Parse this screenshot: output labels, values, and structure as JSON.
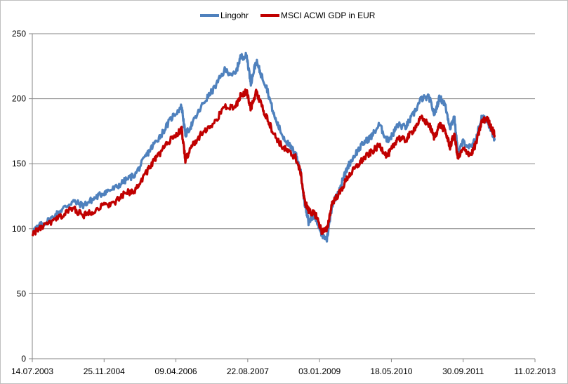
{
  "chart_data": {
    "type": "line",
    "title": "",
    "xlabel": "",
    "ylabel": "",
    "ylim": [
      0,
      250
    ],
    "y_ticks": [
      "0",
      "50",
      "100",
      "150",
      "200",
      "250"
    ],
    "y_tick_values": [
      0,
      50,
      100,
      150,
      200,
      250
    ],
    "x_tick_labels": [
      "14.07.2003",
      "25.11.2004",
      "09.04.2006",
      "22.08.2007",
      "03.01.2009",
      "18.05.2010",
      "30.09.2011",
      "11.02.2013"
    ],
    "x_range_years": [
      2003.53,
      2013.12
    ],
    "grid": "horizontal",
    "legend_position": "top",
    "series": [
      {
        "name": "Lingohr",
        "color": "#4f81bd",
        "x": [
          2003.53,
          2003.7,
          2003.9,
          2004.1,
          2004.3,
          2004.5,
          2004.7,
          2004.9,
          2005.1,
          2005.3,
          2005.5,
          2005.7,
          2005.85,
          2006.0,
          2006.2,
          2006.38,
          2006.45,
          2006.6,
          2006.8,
          2007.0,
          2007.2,
          2007.4,
          2007.5,
          2007.62,
          2007.7,
          2007.8,
          2007.9,
          2008.0,
          2008.15,
          2008.3,
          2008.45,
          2008.55,
          2008.65,
          2008.72,
          2008.8,
          2008.88,
          2008.95,
          2009.05,
          2009.15,
          2009.25,
          2009.4,
          2009.55,
          2009.7,
          2009.85,
          2010.0,
          2010.15,
          2010.3,
          2010.4,
          2010.5,
          2010.65,
          2010.8,
          2010.95,
          2011.1,
          2011.2,
          2011.3,
          2011.4,
          2011.5,
          2011.58,
          2011.65,
          2011.75,
          2011.9,
          2012.0,
          2012.1,
          2012.2,
          2012.3,
          2012.35
        ],
        "values": [
          98,
          103,
          108,
          115,
          121,
          118,
          123,
          128,
          131,
          137,
          142,
          156,
          165,
          173,
          186,
          194,
          172,
          182,
          197,
          208,
          222,
          218,
          232,
          233,
          212,
          229,
          218,
          209,
          186,
          172,
          163,
          158,
          144,
          121,
          105,
          110,
          108,
          95,
          92,
          118,
          132,
          148,
          158,
          166,
          171,
          180,
          168,
          172,
          180,
          178,
          188,
          200,
          201,
          188,
          201,
          196,
          178,
          186,
          158,
          167,
          162,
          170,
          185,
          184,
          175,
          168
        ]
      },
      {
        "name": "MSCI ACWI GDP in EUR",
        "color": "#c00000",
        "x": [
          2003.53,
          2003.7,
          2003.9,
          2004.1,
          2004.3,
          2004.5,
          2004.7,
          2004.9,
          2005.1,
          2005.3,
          2005.5,
          2005.7,
          2005.85,
          2006.0,
          2006.2,
          2006.38,
          2006.45,
          2006.6,
          2006.8,
          2007.0,
          2007.2,
          2007.4,
          2007.5,
          2007.62,
          2007.7,
          2007.8,
          2007.9,
          2008.0,
          2008.15,
          2008.3,
          2008.45,
          2008.55,
          2008.65,
          2008.72,
          2008.8,
          2008.88,
          2008.95,
          2009.05,
          2009.15,
          2009.25,
          2009.4,
          2009.55,
          2009.7,
          2009.85,
          2010.0,
          2010.15,
          2010.3,
          2010.4,
          2010.5,
          2010.65,
          2010.8,
          2010.95,
          2011.1,
          2011.2,
          2011.3,
          2011.4,
          2011.5,
          2011.58,
          2011.65,
          2011.75,
          2011.9,
          2012.0,
          2012.1,
          2012.2,
          2012.3,
          2012.35
        ],
        "values": [
          96,
          101,
          105,
          110,
          116,
          110,
          114,
          118,
          120,
          127,
          130,
          143,
          152,
          160,
          170,
          176,
          153,
          165,
          175,
          181,
          194,
          193,
          202,
          206,
          192,
          205,
          195,
          186,
          172,
          163,
          158,
          155,
          143,
          122,
          114,
          112,
          110,
          98,
          99,
          120,
          128,
          140,
          147,
          154,
          159,
          164,
          156,
          162,
          170,
          168,
          176,
          185,
          180,
          170,
          180,
          176,
          163,
          173,
          154,
          161,
          157,
          166,
          182,
          185,
          177,
          172
        ]
      }
    ]
  }
}
